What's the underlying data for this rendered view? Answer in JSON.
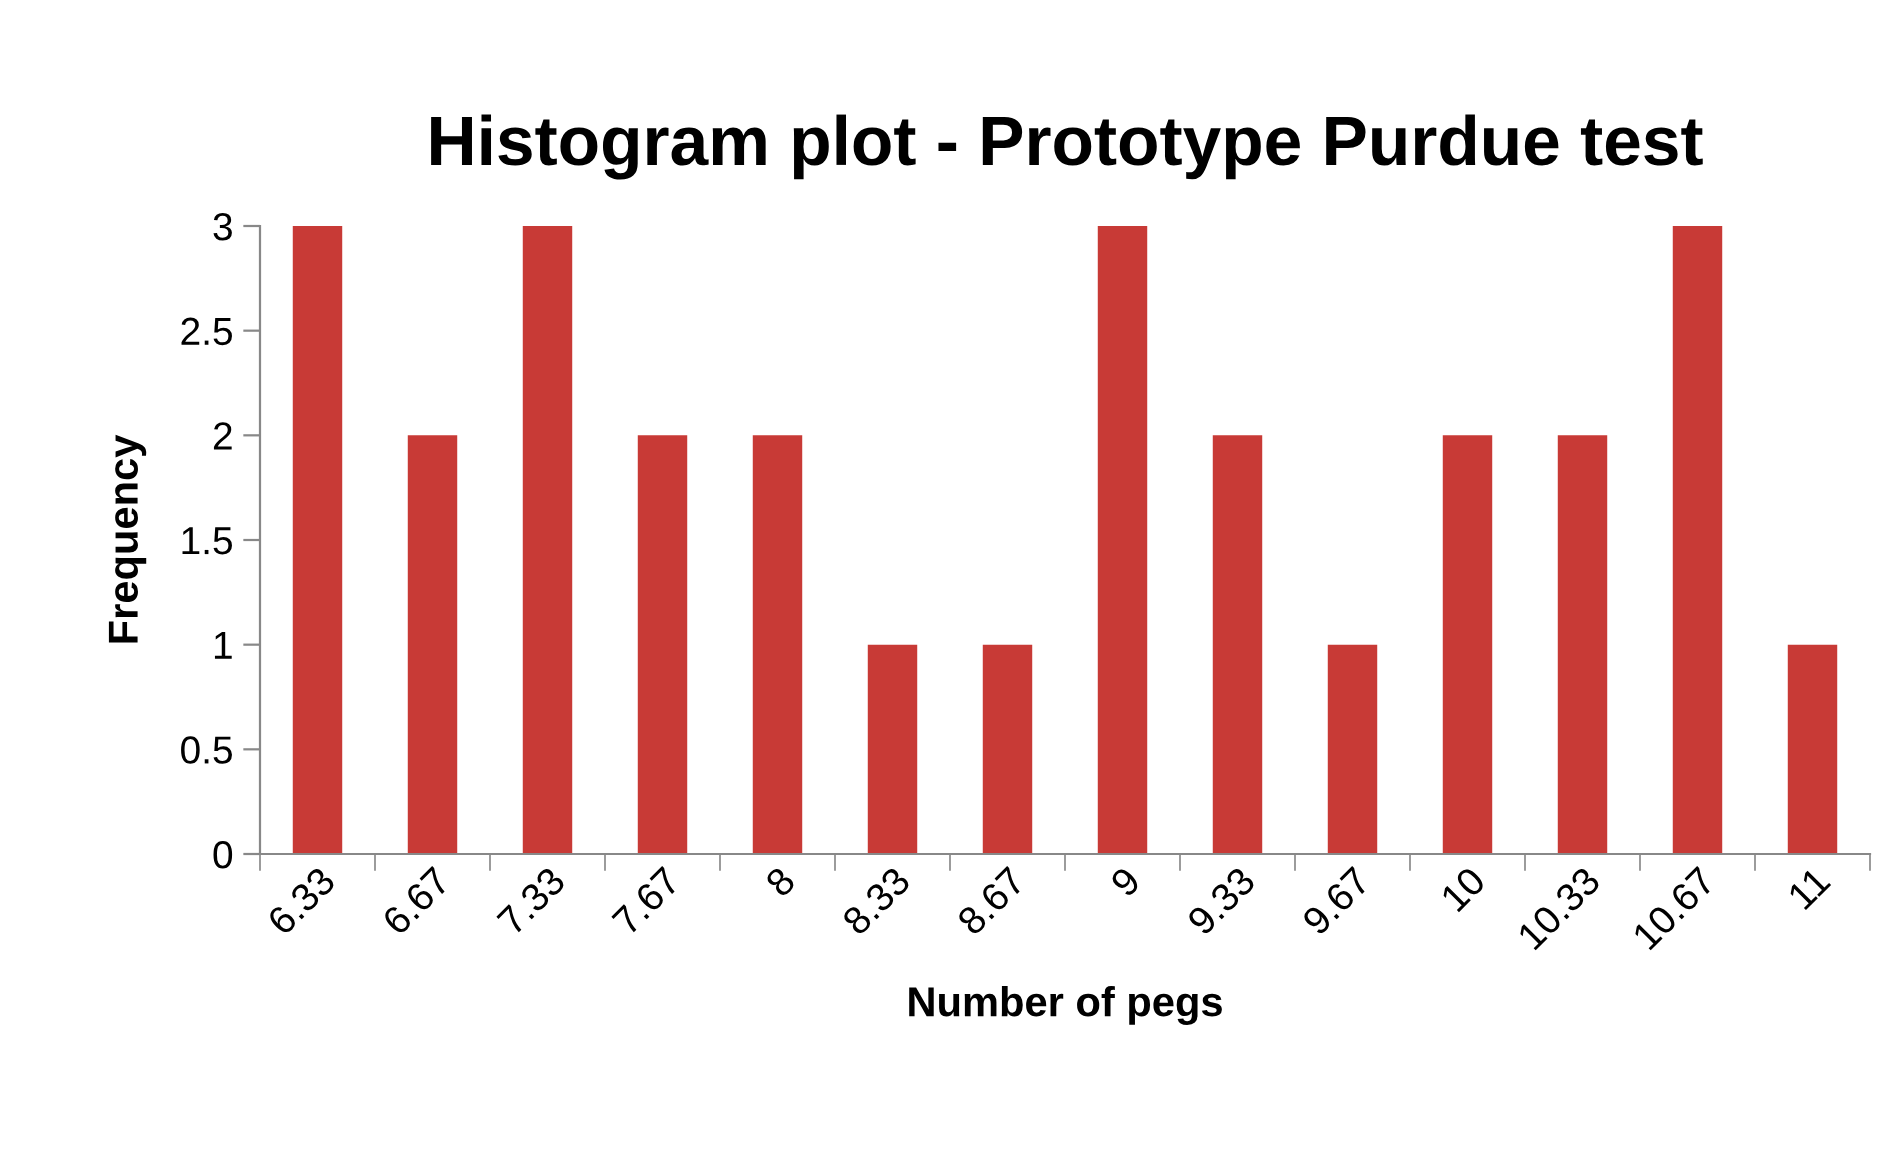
{
  "chart_data": {
    "type": "bar",
    "title": "Histogram plot - Prototype Purdue test",
    "xlabel": "Number of pegs",
    "ylabel": "Frequency",
    "categories": [
      "6.33",
      "6.67",
      "7.33",
      "7.67",
      "8",
      "8.33",
      "8.67",
      "9",
      "9.33",
      "9.67",
      "10",
      "10.33",
      "10.67",
      "11"
    ],
    "values": [
      3,
      2,
      3,
      2,
      2,
      1,
      1,
      3,
      2,
      1,
      2,
      2,
      3,
      1
    ],
    "color": "#c83a36",
    "ylim": [
      0,
      3
    ],
    "yticks": [
      0,
      0.5,
      1,
      1.5,
      2,
      2.5,
      3
    ],
    "grid": false
  }
}
